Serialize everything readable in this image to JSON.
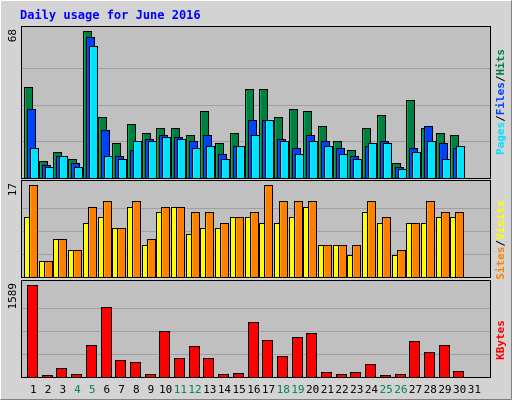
{
  "title": "Daily usage for June 2016",
  "colors": {
    "background": "#D3D3D3",
    "plot_background": "#C0C0C0",
    "title": "#0000FF",
    "hits": "#008040",
    "files": "#0040FF",
    "pages": "#00E0FF",
    "visits": "#FFFF00",
    "sites": "#FF8000",
    "kbytes": "#FF0000",
    "weekend_label": "#00805C",
    "label": "#000000"
  },
  "legend": {
    "pages": "Pages",
    "files": "Files",
    "hits": "Hits",
    "sites": "Sites",
    "visits": "Visits",
    "kbytes": "KBytes",
    "separator": "/"
  },
  "chart_data": {
    "type": "bar",
    "title": "Daily usage for June 2016",
    "categories": [
      "1",
      "2",
      "3",
      "4",
      "5",
      "6",
      "7",
      "8",
      "9",
      "10",
      "11",
      "12",
      "13",
      "14",
      "15",
      "16",
      "17",
      "18",
      "19",
      "20",
      "21",
      "22",
      "23",
      "24",
      "25",
      "26",
      "27",
      "28",
      "29",
      "30",
      "31"
    ],
    "weekend_days": [
      "4",
      "5",
      "11",
      "12",
      "18",
      "19",
      "25",
      "26"
    ],
    "panels": [
      {
        "name": "hits-files-pages",
        "ymax": 68,
        "max_label": "68",
        "series": [
          {
            "name": "Hits",
            "color": "#008040",
            "values": [
              42,
              8,
              12,
              9,
              68,
              28,
              16,
              25,
              21,
              23,
              23,
              20,
              31,
              16,
              21,
              41,
              41,
              28,
              32,
              31,
              24,
              17,
              13,
              23,
              29,
              7,
              36,
              23,
              21,
              20,
              0
            ]
          },
          {
            "name": "Files",
            "color": "#0040FF",
            "values": [
              32,
              6,
              10,
              7,
              65,
              22,
              10,
              13,
              18,
              20,
              19,
              17,
              20,
              11,
              15,
              27,
              27,
              18,
              14,
              20,
              17,
              14,
              10,
              15,
              17,
              5,
              14,
              24,
              16,
              14,
              0
            ]
          },
          {
            "name": "Pages",
            "color": "#00E0FF",
            "values": [
              14,
              5,
              10,
              5,
              61,
              10,
              9,
              17,
              17,
              19,
              18,
              14,
              15,
              9,
              15,
              20,
              27,
              17,
              11,
              17,
              15,
              11,
              9,
              16,
              16,
              4,
              12,
              17,
              9,
              15,
              0
            ]
          }
        ]
      },
      {
        "name": "visits-sites",
        "ymax": 17,
        "max_label": "17",
        "series": [
          {
            "name": "Visits",
            "color": "#FFFF00",
            "values": [
              11,
              3,
              7,
              5,
              10,
              11,
              9,
              13,
              6,
              12,
              13,
              8,
              9,
              9,
              11,
              11,
              10,
              10,
              11,
              13,
              6,
              6,
              4,
              12,
              10,
              4,
              10,
              10,
              11,
              11,
              0
            ]
          },
          {
            "name": "Sites",
            "color": "#FF8000",
            "values": [
              17,
              3,
              7,
              5,
              13,
              14,
              9,
              14,
              7,
              13,
              13,
              12,
              12,
              10,
              11,
              12,
              17,
              14,
              14,
              14,
              6,
              6,
              6,
              14,
              11,
              5,
              10,
              14,
              12,
              12,
              0
            ]
          }
        ]
      },
      {
        "name": "kbytes",
        "ymax": 1589,
        "max_label": "1589",
        "series": [
          {
            "name": "KBytes",
            "color": "#FF0000",
            "values": [
              1589,
              40,
              160,
              50,
              550,
              1210,
              290,
              260,
              50,
              800,
              320,
              540,
              330,
              60,
              70,
              950,
              640,
              360,
              690,
              760,
              80,
              50,
              90,
              230,
              40,
              60,
              630,
              440,
              560,
              100,
              0
            ]
          }
        ]
      }
    ]
  }
}
